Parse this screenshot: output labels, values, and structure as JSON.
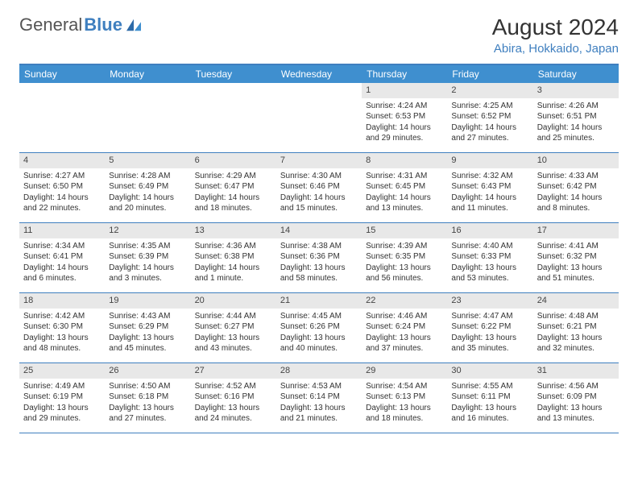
{
  "logo": {
    "text1": "General",
    "text2": "Blue"
  },
  "title": "August 2024",
  "location": "Abira, Hokkaido, Japan",
  "header_bg": "#3f8fcf",
  "accent": "#3f7fbf",
  "daynum_bg": "#e8e8e8",
  "day_headers": [
    "Sunday",
    "Monday",
    "Tuesday",
    "Wednesday",
    "Thursday",
    "Friday",
    "Saturday"
  ],
  "weeks": [
    [
      {
        "n": "",
        "sr": "",
        "ss": "",
        "dl": ""
      },
      {
        "n": "",
        "sr": "",
        "ss": "",
        "dl": ""
      },
      {
        "n": "",
        "sr": "",
        "ss": "",
        "dl": ""
      },
      {
        "n": "",
        "sr": "",
        "ss": "",
        "dl": ""
      },
      {
        "n": "1",
        "sr": "Sunrise: 4:24 AM",
        "ss": "Sunset: 6:53 PM",
        "dl": "Daylight: 14 hours and 29 minutes."
      },
      {
        "n": "2",
        "sr": "Sunrise: 4:25 AM",
        "ss": "Sunset: 6:52 PM",
        "dl": "Daylight: 14 hours and 27 minutes."
      },
      {
        "n": "3",
        "sr": "Sunrise: 4:26 AM",
        "ss": "Sunset: 6:51 PM",
        "dl": "Daylight: 14 hours and 25 minutes."
      }
    ],
    [
      {
        "n": "4",
        "sr": "Sunrise: 4:27 AM",
        "ss": "Sunset: 6:50 PM",
        "dl": "Daylight: 14 hours and 22 minutes."
      },
      {
        "n": "5",
        "sr": "Sunrise: 4:28 AM",
        "ss": "Sunset: 6:49 PM",
        "dl": "Daylight: 14 hours and 20 minutes."
      },
      {
        "n": "6",
        "sr": "Sunrise: 4:29 AM",
        "ss": "Sunset: 6:47 PM",
        "dl": "Daylight: 14 hours and 18 minutes."
      },
      {
        "n": "7",
        "sr": "Sunrise: 4:30 AM",
        "ss": "Sunset: 6:46 PM",
        "dl": "Daylight: 14 hours and 15 minutes."
      },
      {
        "n": "8",
        "sr": "Sunrise: 4:31 AM",
        "ss": "Sunset: 6:45 PM",
        "dl": "Daylight: 14 hours and 13 minutes."
      },
      {
        "n": "9",
        "sr": "Sunrise: 4:32 AM",
        "ss": "Sunset: 6:43 PM",
        "dl": "Daylight: 14 hours and 11 minutes."
      },
      {
        "n": "10",
        "sr": "Sunrise: 4:33 AM",
        "ss": "Sunset: 6:42 PM",
        "dl": "Daylight: 14 hours and 8 minutes."
      }
    ],
    [
      {
        "n": "11",
        "sr": "Sunrise: 4:34 AM",
        "ss": "Sunset: 6:41 PM",
        "dl": "Daylight: 14 hours and 6 minutes."
      },
      {
        "n": "12",
        "sr": "Sunrise: 4:35 AM",
        "ss": "Sunset: 6:39 PM",
        "dl": "Daylight: 14 hours and 3 minutes."
      },
      {
        "n": "13",
        "sr": "Sunrise: 4:36 AM",
        "ss": "Sunset: 6:38 PM",
        "dl": "Daylight: 14 hours and 1 minute."
      },
      {
        "n": "14",
        "sr": "Sunrise: 4:38 AM",
        "ss": "Sunset: 6:36 PM",
        "dl": "Daylight: 13 hours and 58 minutes."
      },
      {
        "n": "15",
        "sr": "Sunrise: 4:39 AM",
        "ss": "Sunset: 6:35 PM",
        "dl": "Daylight: 13 hours and 56 minutes."
      },
      {
        "n": "16",
        "sr": "Sunrise: 4:40 AM",
        "ss": "Sunset: 6:33 PM",
        "dl": "Daylight: 13 hours and 53 minutes."
      },
      {
        "n": "17",
        "sr": "Sunrise: 4:41 AM",
        "ss": "Sunset: 6:32 PM",
        "dl": "Daylight: 13 hours and 51 minutes."
      }
    ],
    [
      {
        "n": "18",
        "sr": "Sunrise: 4:42 AM",
        "ss": "Sunset: 6:30 PM",
        "dl": "Daylight: 13 hours and 48 minutes."
      },
      {
        "n": "19",
        "sr": "Sunrise: 4:43 AM",
        "ss": "Sunset: 6:29 PM",
        "dl": "Daylight: 13 hours and 45 minutes."
      },
      {
        "n": "20",
        "sr": "Sunrise: 4:44 AM",
        "ss": "Sunset: 6:27 PM",
        "dl": "Daylight: 13 hours and 43 minutes."
      },
      {
        "n": "21",
        "sr": "Sunrise: 4:45 AM",
        "ss": "Sunset: 6:26 PM",
        "dl": "Daylight: 13 hours and 40 minutes."
      },
      {
        "n": "22",
        "sr": "Sunrise: 4:46 AM",
        "ss": "Sunset: 6:24 PM",
        "dl": "Daylight: 13 hours and 37 minutes."
      },
      {
        "n": "23",
        "sr": "Sunrise: 4:47 AM",
        "ss": "Sunset: 6:22 PM",
        "dl": "Daylight: 13 hours and 35 minutes."
      },
      {
        "n": "24",
        "sr": "Sunrise: 4:48 AM",
        "ss": "Sunset: 6:21 PM",
        "dl": "Daylight: 13 hours and 32 minutes."
      }
    ],
    [
      {
        "n": "25",
        "sr": "Sunrise: 4:49 AM",
        "ss": "Sunset: 6:19 PM",
        "dl": "Daylight: 13 hours and 29 minutes."
      },
      {
        "n": "26",
        "sr": "Sunrise: 4:50 AM",
        "ss": "Sunset: 6:18 PM",
        "dl": "Daylight: 13 hours and 27 minutes."
      },
      {
        "n": "27",
        "sr": "Sunrise: 4:52 AM",
        "ss": "Sunset: 6:16 PM",
        "dl": "Daylight: 13 hours and 24 minutes."
      },
      {
        "n": "28",
        "sr": "Sunrise: 4:53 AM",
        "ss": "Sunset: 6:14 PM",
        "dl": "Daylight: 13 hours and 21 minutes."
      },
      {
        "n": "29",
        "sr": "Sunrise: 4:54 AM",
        "ss": "Sunset: 6:13 PM",
        "dl": "Daylight: 13 hours and 18 minutes."
      },
      {
        "n": "30",
        "sr": "Sunrise: 4:55 AM",
        "ss": "Sunset: 6:11 PM",
        "dl": "Daylight: 13 hours and 16 minutes."
      },
      {
        "n": "31",
        "sr": "Sunrise: 4:56 AM",
        "ss": "Sunset: 6:09 PM",
        "dl": "Daylight: 13 hours and 13 minutes."
      }
    ]
  ]
}
